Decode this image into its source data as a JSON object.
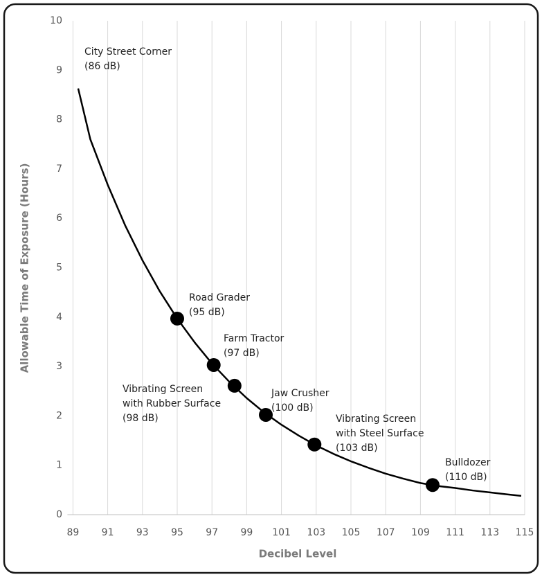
{
  "chart_data": {
    "type": "line",
    "xlabel": "Decibel Level",
    "ylabel": "Allowable Time of Exposure (Hours)",
    "xlim": [
      89,
      115
    ],
    "ylim": [
      0,
      10
    ],
    "xticks": [
      89,
      91,
      93,
      95,
      97,
      99,
      101,
      103,
      105,
      107,
      109,
      111,
      113,
      115
    ],
    "yticks": [
      0,
      1,
      2,
      3,
      4,
      5,
      6,
      7,
      8,
      9,
      10
    ],
    "grid": "x",
    "curve": {
      "color": "#000000",
      "x": [
        89.3,
        90,
        91,
        92,
        93,
        94,
        95,
        96,
        97,
        98,
        99,
        100,
        101,
        102,
        103,
        104,
        105,
        106,
        107,
        108,
        109,
        110,
        111,
        112,
        113,
        114,
        114.8
      ],
      "values": [
        8.63,
        7.6,
        6.68,
        5.86,
        5.15,
        4.52,
        3.97,
        3.49,
        3.06,
        2.69,
        2.36,
        2.07,
        1.82,
        1.6,
        1.4,
        1.23,
        1.08,
        0.95,
        0.83,
        0.73,
        0.64,
        0.58,
        0.54,
        0.49,
        0.45,
        0.41,
        0.38
      ]
    },
    "points": {
      "color": "#000000",
      "x": [
        95,
        97.1,
        98.3,
        100.1,
        102.9,
        109.7
      ],
      "values": [
        3.97,
        3.03,
        2.61,
        2.02,
        1.42,
        0.6
      ]
    },
    "annotations": [
      {
        "lines": [
          "City Street Corner",
          "(86 dB)"
        ],
        "color": "#222222"
      },
      {
        "lines": [
          "Road Grader",
          "(95 dB)"
        ],
        "color": "#222222"
      },
      {
        "lines": [
          "Farm Tractor",
          "(97 dB)"
        ],
        "color": "#222222"
      },
      {
        "lines": [
          "Vibrating Screen",
          "with Rubber Surface",
          "(98 dB)"
        ],
        "color": "#e8101a"
      },
      {
        "lines": [
          "Jaw Crusher",
          "(100 dB)"
        ],
        "color": "#222222"
      },
      {
        "lines": [
          "Vibrating Screen",
          "with Steel Surface",
          "(103 dB)"
        ],
        "color": "#222222"
      },
      {
        "lines": [
          "Bulldozer",
          "(110 dB)"
        ],
        "color": "#222222"
      }
    ]
  }
}
